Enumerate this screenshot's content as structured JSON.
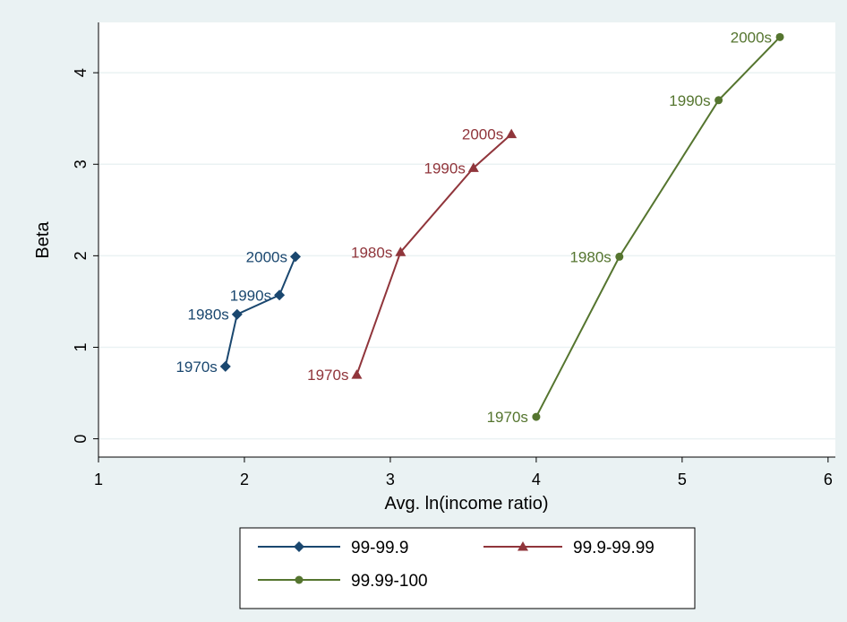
{
  "chart_data": {
    "type": "line",
    "title": "",
    "xlabel": "Avg. ln(income ratio)",
    "ylabel": "Beta",
    "xlim": [
      1,
      6.05
    ],
    "ylim": [
      -0.2,
      4.55
    ],
    "xticks": [
      1,
      2,
      3,
      4,
      5,
      6
    ],
    "yticks": [
      0,
      1,
      2,
      3,
      4
    ],
    "grid": "horizontal",
    "legend_position": "bottom",
    "series": [
      {
        "name": "99-99.9",
        "color": "#1a476f",
        "marker": "diamond",
        "points": [
          {
            "x": 1.87,
            "y": 0.79,
            "label": "1970s"
          },
          {
            "x": 1.95,
            "y": 1.36,
            "label": "1980s"
          },
          {
            "x": 2.24,
            "y": 1.57,
            "label": "1990s"
          },
          {
            "x": 2.35,
            "y": 1.99,
            "label": "2000s"
          }
        ]
      },
      {
        "name": "99.9-99.99",
        "color": "#90353b",
        "marker": "triangle",
        "points": [
          {
            "x": 2.77,
            "y": 0.7,
            "label": "1970s"
          },
          {
            "x": 3.07,
            "y": 2.04,
            "label": "1980s"
          },
          {
            "x": 3.57,
            "y": 2.96,
            "label": "1990s"
          },
          {
            "x": 3.83,
            "y": 3.33,
            "label": "2000s"
          }
        ]
      },
      {
        "name": "99.99-100",
        "color": "#55752f",
        "marker": "circle",
        "points": [
          {
            "x": 4.0,
            "y": 0.24,
            "label": "1970s"
          },
          {
            "x": 4.57,
            "y": 1.99,
            "label": "1980s"
          },
          {
            "x": 5.25,
            "y": 3.7,
            "label": "1990s"
          },
          {
            "x": 5.67,
            "y": 4.39,
            "label": "2000s"
          }
        ]
      }
    ]
  }
}
